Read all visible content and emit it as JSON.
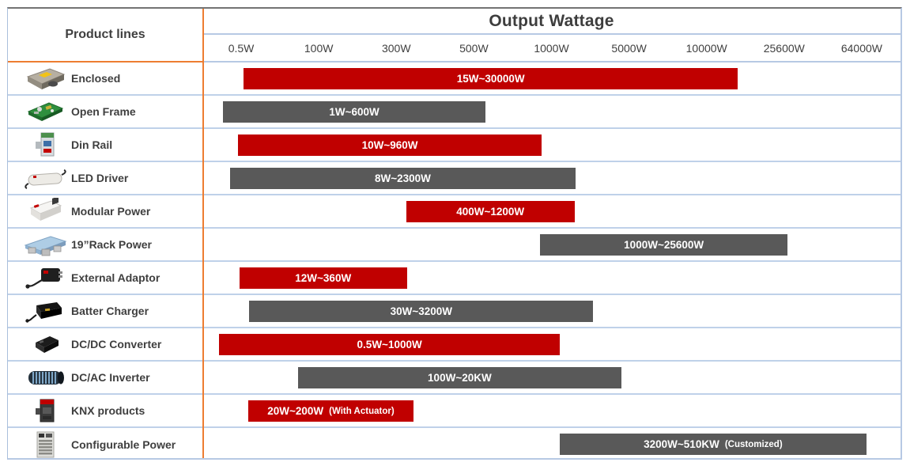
{
  "header": {
    "product_lines_label": "Product lines",
    "chart_title": "Output Wattage"
  },
  "colors": {
    "bar_red": "#c00000",
    "bar_gray": "#595959",
    "divider_orange": "#ed7d31",
    "divider_blue": "#bfd1e9",
    "text_dark": "#3f3f3f"
  },
  "chart_data": {
    "type": "bar",
    "orientation": "horizontal-range",
    "title": "Output Wattage",
    "x_axis_label": "Output Wattage",
    "x_ticks": [
      "0.5W",
      "100W",
      "300W",
      "500W",
      "1000W",
      "5000W",
      "10000W",
      "25600W",
      "64000W"
    ],
    "legend": "none",
    "grid": "off",
    "rows": [
      {
        "product": "Enclosed",
        "icon": "enclosed-psu-icon",
        "range_label": "15W~30000W",
        "note": "",
        "min": "15W",
        "max": "30000W",
        "color": "red",
        "start_pct": 5.9,
        "width_pct": 70.8
      },
      {
        "product": "Open Frame",
        "icon": "open-frame-psu-icon",
        "range_label": "1W~600W",
        "note": "",
        "min": "1W",
        "max": "600W",
        "color": "gray",
        "start_pct": 2.9,
        "width_pct": 37.7
      },
      {
        "product": "Din Rail",
        "icon": "din-rail-psu-icon",
        "range_label": "10W~960W",
        "note": "",
        "min": "10W",
        "max": "960W",
        "color": "red",
        "start_pct": 5.1,
        "width_pct": 43.5
      },
      {
        "product": "LED Driver",
        "icon": "led-driver-icon",
        "range_label": "8W~2300W",
        "note": "",
        "min": "8W",
        "max": "2300W",
        "color": "gray",
        "start_pct": 4.0,
        "width_pct": 49.4
      },
      {
        "product": "Modular Power",
        "icon": "modular-power-icon",
        "range_label": "400W~1200W",
        "note": "",
        "min": "400W",
        "max": "1200W",
        "color": "red",
        "start_pct": 29.2,
        "width_pct": 24.1
      },
      {
        "product": "19”Rack Power",
        "icon": "rack-power-icon",
        "range_label": "1000W~25600W",
        "note": "",
        "min": "1000W",
        "max": "25600W",
        "color": "gray",
        "start_pct": 48.4,
        "width_pct": 35.4
      },
      {
        "product": "External Adaptor",
        "icon": "external-adaptor-icon",
        "range_label": "12W~360W",
        "note": "",
        "min": "12W",
        "max": "360W",
        "color": "red",
        "start_pct": 5.3,
        "width_pct": 24.0
      },
      {
        "product": "Batter Charger",
        "icon": "battery-charger-icon",
        "range_label": "30W~3200W",
        "note": "",
        "min": "30W",
        "max": "3200W",
        "color": "gray",
        "start_pct": 6.7,
        "width_pct": 49.3
      },
      {
        "product": "DC/DC Converter",
        "icon": "dcdc-converter-icon",
        "range_label": "0.5W~1000W",
        "note": "",
        "min": "0.5W",
        "max": "1000W",
        "color": "red",
        "start_pct": 2.4,
        "width_pct": 48.8
      },
      {
        "product": "DC/AC Inverter",
        "icon": "dcac-inverter-icon",
        "range_label": "100W~20KW",
        "note": "",
        "min": "100W",
        "max": "20KW",
        "color": "gray",
        "start_pct": 13.7,
        "width_pct": 46.3
      },
      {
        "product": "KNX products",
        "icon": "knx-product-icon",
        "range_label": "20W~200W",
        "note": "(With Actuator)",
        "min": "20W",
        "max": "200W",
        "color": "red",
        "start_pct": 6.6,
        "width_pct": 23.6
      },
      {
        "product": "Configurable Power",
        "icon": "configurable-power-icon",
        "range_label": "3200W~510KW",
        "note": "(Customized)",
        "min": "3200W",
        "max": "510KW",
        "color": "gray",
        "start_pct": 51.2,
        "width_pct": 43.9
      }
    ]
  }
}
